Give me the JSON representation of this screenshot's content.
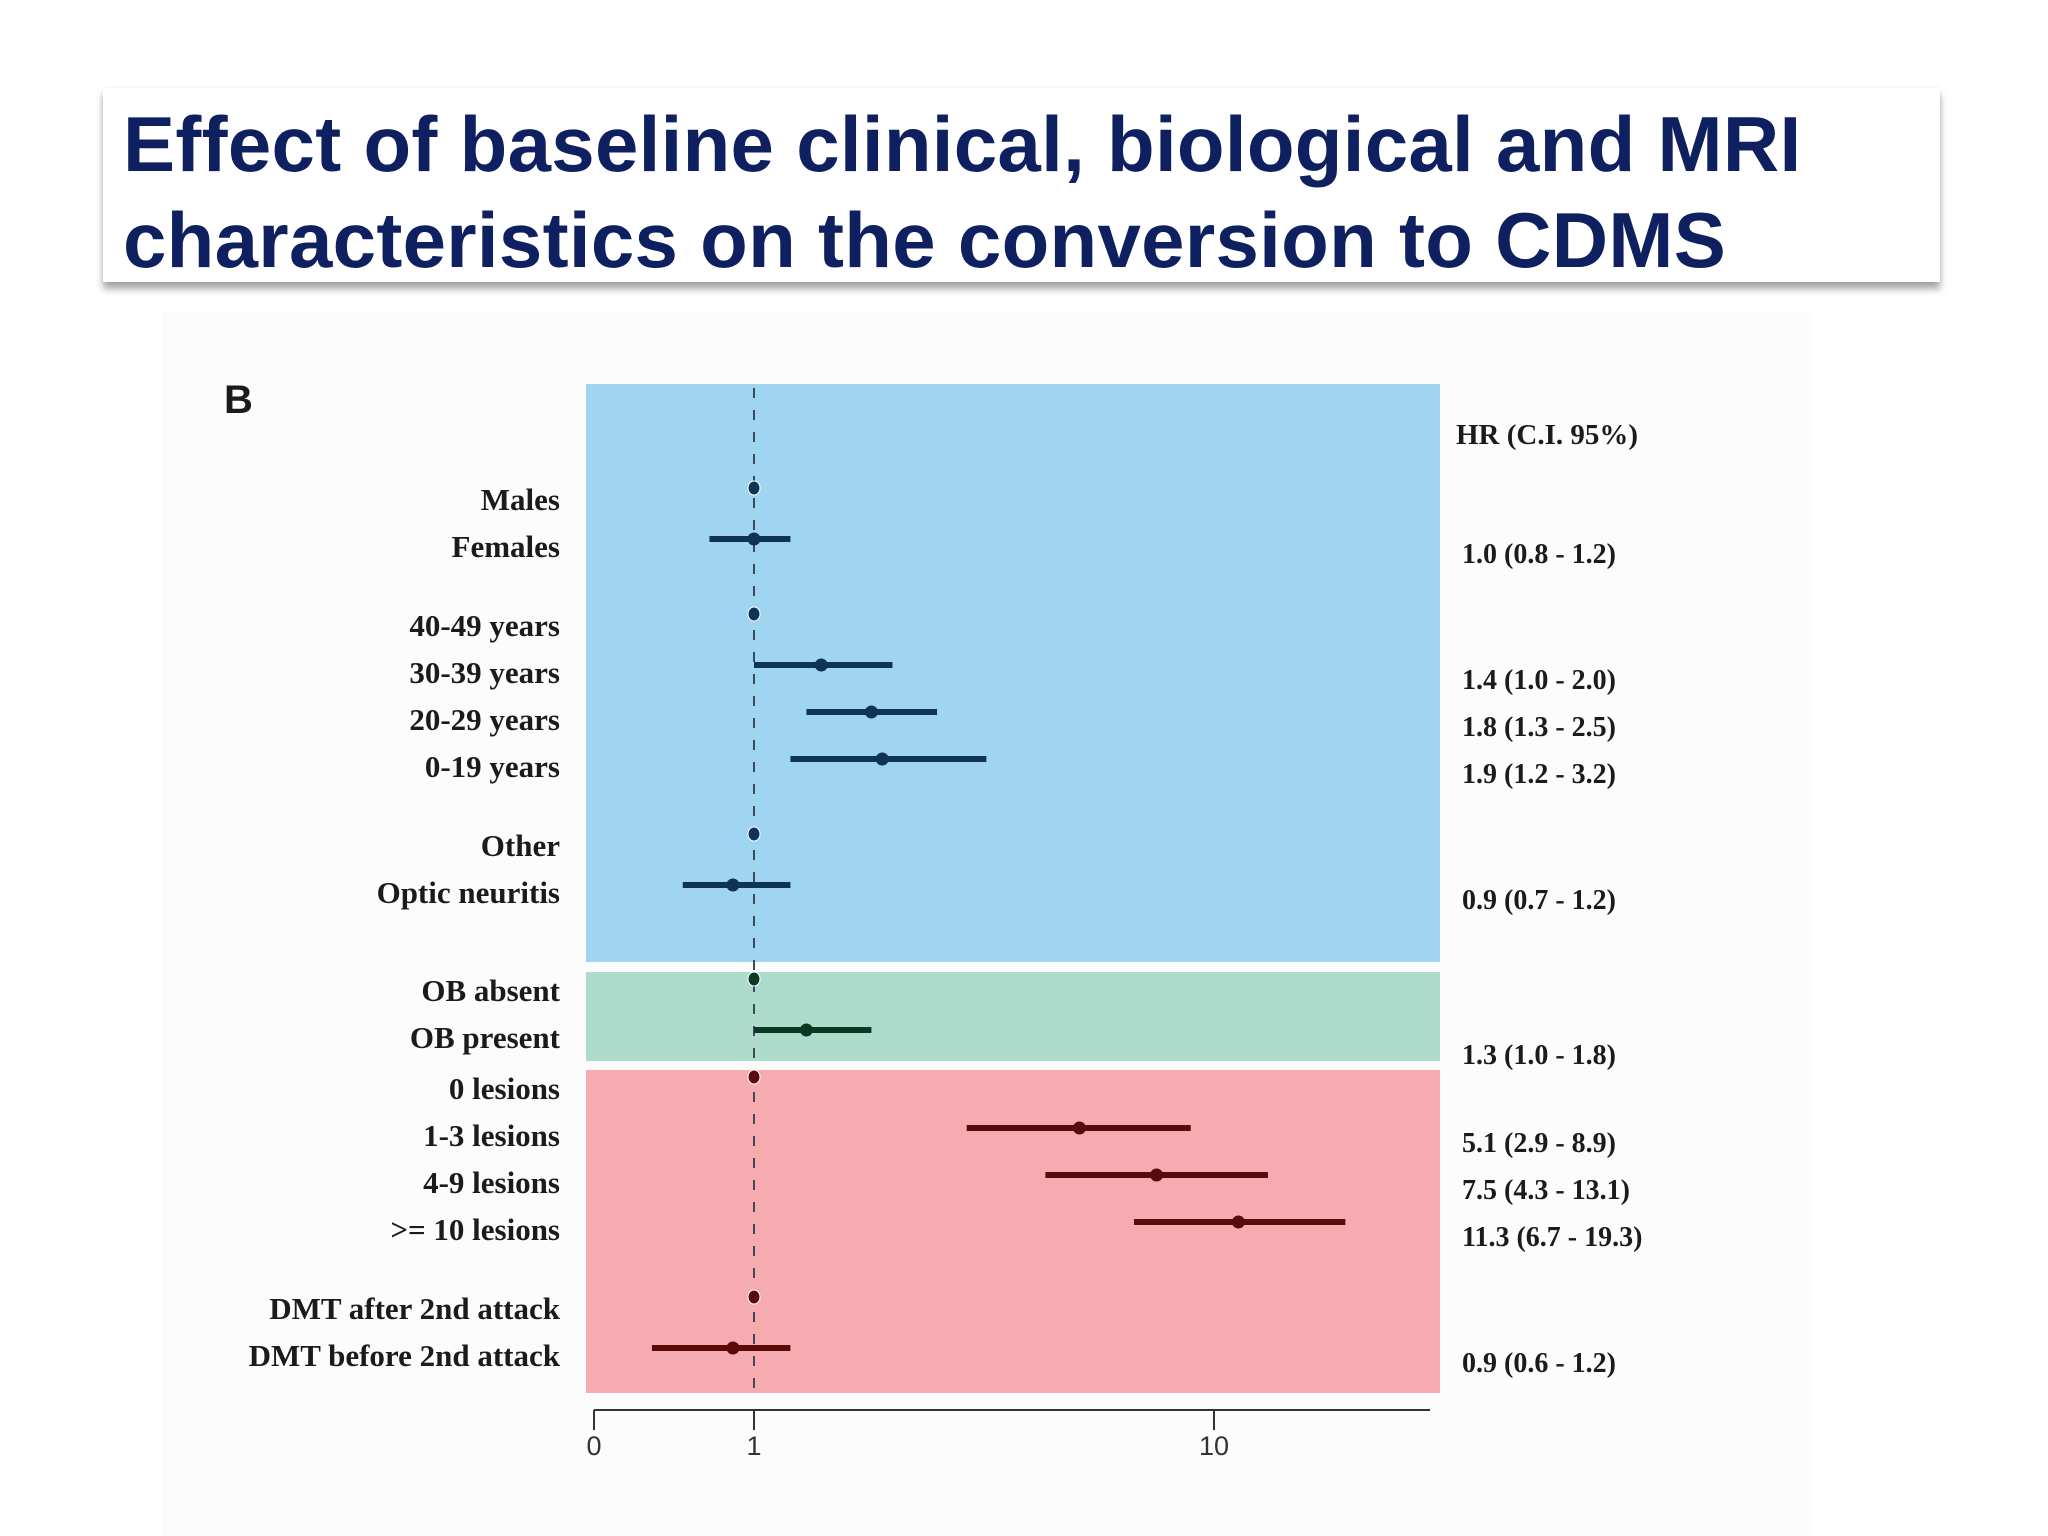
{
  "title": "Effect of baseline clinical, biological and MRI characteristics on the conversion to CDMS",
  "title_lines": [
    "Effect of baseline clinical, biological and MRI",
    "characteristics on the conversion to CDMS"
  ],
  "panel_label": "B",
  "hr_header": "HR (C.I. 95%)",
  "colors": {
    "title": "#0f2060",
    "panel_blue": "#9fd5f0",
    "panel_green": "#addccd",
    "panel_red": "#f6abb0",
    "marker_blue": "#0e3354",
    "marker_green": "#0b3a22",
    "marker_red": "#5a0a0a"
  },
  "chart_data": {
    "type": "forest",
    "x_scale": "log",
    "reference_line": 1,
    "x_ticks": [
      "0",
      "1",
      "10"
    ],
    "panels": [
      {
        "name": "blue",
        "groups": [
          {
            "rows": [
              {
                "label": "Males",
                "reference": true,
                "hr": 1
              },
              {
                "label": "Females",
                "hr": 1.0,
                "lo": 0.8,
                "hi": 1.2,
                "text": "1.0 (0.8 -  1.2)"
              }
            ]
          },
          {
            "rows": [
              {
                "label": "40-49 years",
                "reference": true,
                "hr": 1
              },
              {
                "label": "30-39 years",
                "hr": 1.4,
                "lo": 1.0,
                "hi": 2.0,
                "text": "1.4 (1.0 -  2.0)"
              },
              {
                "label": "20-29 years",
                "hr": 1.8,
                "lo": 1.3,
                "hi": 2.5,
                "text": "1.8 (1.3 -  2.5)"
              },
              {
                "label": "0-19 years",
                "hr": 1.9,
                "lo": 1.2,
                "hi": 3.2,
                "text": "1.9 (1.2 -  3.2)"
              }
            ]
          },
          {
            "rows": [
              {
                "label": "Other",
                "reference": true,
                "hr": 1
              },
              {
                "label": "Optic neuritis",
                "hr": 0.9,
                "lo": 0.7,
                "hi": 1.2,
                "text": "0.9 (0.7 -  1.2)"
              }
            ]
          }
        ]
      },
      {
        "name": "green",
        "groups": [
          {
            "rows": [
              {
                "label": "OB absent",
                "reference": true,
                "hr": 1
              },
              {
                "label": "OB present",
                "hr": 1.3,
                "lo": 1.0,
                "hi": 1.8,
                "text": "1.3 (1.0 -  1.8)"
              }
            ]
          }
        ]
      },
      {
        "name": "red",
        "groups": [
          {
            "rows": [
              {
                "label": "0 lesions",
                "reference": true,
                "hr": 1
              },
              {
                "label": "1-3 lesions",
                "hr": 5.1,
                "lo": 2.9,
                "hi": 8.9,
                "text": "5.1 (2.9 -  8.9)"
              },
              {
                "label": "4-9 lesions",
                "hr": 7.5,
                "lo": 4.3,
                "hi": 13.1,
                "text": "7.5 (4.3 - 13.1)"
              },
              {
                "label": ">= 10 lesions",
                "hr": 11.3,
                "lo": 6.7,
                "hi": 19.3,
                "text": "11.3 (6.7 - 19.3)"
              }
            ]
          },
          {
            "rows": [
              {
                "label": "DMT after 2nd attack",
                "reference": true,
                "hr": 1
              },
              {
                "label": "DMT before 2nd attack",
                "hr": 0.9,
                "lo": 0.6,
                "hi": 1.2,
                "text": "0.9 (0.6 -  1.2)"
              }
            ]
          }
        ]
      }
    ]
  }
}
